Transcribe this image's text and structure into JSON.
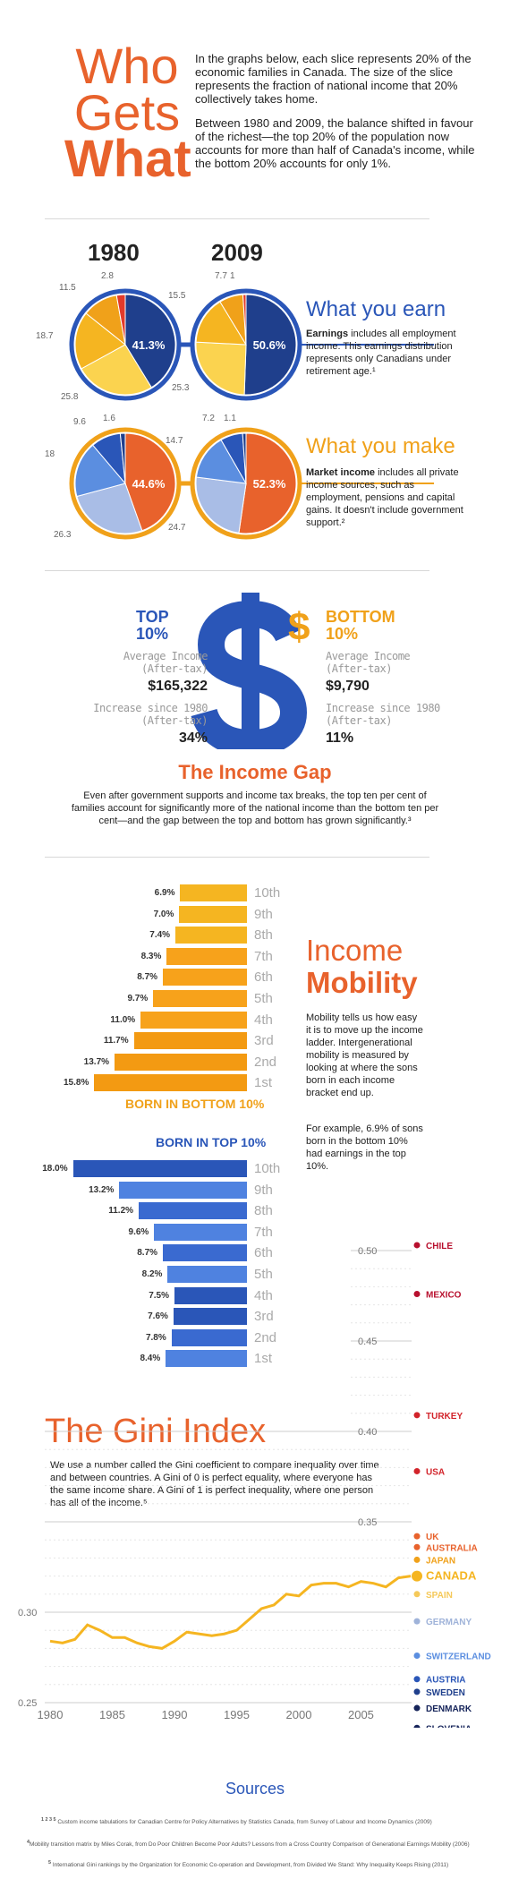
{
  "header": {
    "title_line1": "Who",
    "title_line2": "Gets",
    "title_line3": "What",
    "intro_p1": "In the graphs below, each slice represents 20% of the economic families in Canada. The size of the slice represents the fraction of national income that 20% collectively takes home.",
    "intro_p2": "Between 1980 and 2009, the balance shifted in favour of the richest—the top 20% of the population now accounts for more than half of Canada's income, while the bottom 20% accounts for only 1%."
  },
  "pies": {
    "year_a": "1980",
    "year_b": "2009",
    "earn_title": "What you earn",
    "earn_desc_bold": "Earnings",
    "earn_desc": " includes all employment income. This earnings distribution represents only Canadians under retirement age.¹",
    "make_title": "What you make",
    "make_desc_bold": "Market income",
    "make_desc": " includes all private income sources, such as employment, pensions and capital gains. It doesn't include government support.²"
  },
  "colors": {
    "orange": "#e8622c",
    "navy": "#1f3f8c",
    "blue": "#2a56b8",
    "gold": "#f5b521",
    "yellow": "#fbd34f",
    "red": "#e23a2a"
  },
  "chart_data": [
    {
      "type": "pie",
      "title": "What you earn",
      "series": [
        {
          "name": "1980",
          "values": [
            41.3,
            25.8,
            18.7,
            11.5,
            2.8
          ],
          "labels": [
            "41.3%",
            "25.8",
            "18.7",
            "11.5",
            "2.8"
          ]
        },
        {
          "name": "2009",
          "values": [
            50.6,
            25.3,
            15.5,
            7.7,
            1
          ],
          "labels": [
            "50.6%",
            "25.3",
            "15.5",
            "7.7",
            "1"
          ]
        }
      ]
    },
    {
      "type": "pie",
      "title": "What you make",
      "series": [
        {
          "name": "1980",
          "values": [
            44.6,
            26.3,
            18,
            9.6,
            1.6
          ],
          "labels": [
            "44.6%",
            "26.3",
            "18",
            "9.6",
            "1.6"
          ]
        },
        {
          "name": "2009",
          "values": [
            52.3,
            24.7,
            14.7,
            7.2,
            1.1
          ],
          "labels": [
            "52.3%",
            "24.7",
            "14.7",
            "7.2",
            "1.1"
          ]
        }
      ]
    },
    {
      "type": "bar",
      "title": "BORN IN BOTTOM 10%",
      "categories": [
        "10th",
        "9th",
        "8th",
        "7th",
        "6th",
        "5th",
        "4th",
        "3rd",
        "2nd",
        "1st"
      ],
      "values": [
        6.9,
        7.0,
        7.4,
        8.3,
        8.7,
        9.7,
        11.0,
        11.7,
        13.7,
        15.8
      ],
      "labels": [
        "6.9%",
        "7.0%",
        "7.4%",
        "8.3%",
        "8.7%",
        "9.7%",
        "11.0%",
        "11.7%",
        "13.7%",
        "15.8%"
      ]
    },
    {
      "type": "bar",
      "title": "BORN IN TOP 10%",
      "categories": [
        "10th",
        "9th",
        "8th",
        "7th",
        "6th",
        "5th",
        "4th",
        "3rd",
        "2nd",
        "1st"
      ],
      "values": [
        18.0,
        13.2,
        11.2,
        9.6,
        8.7,
        8.2,
        7.5,
        7.6,
        7.8,
        8.4
      ],
      "labels": [
        "18.0%",
        "13.2%",
        "11.2%",
        "9.6%",
        "8.7%",
        "8.2%",
        "7.5%",
        "7.6%",
        "7.8%",
        "8.4%"
      ]
    },
    {
      "type": "line",
      "title": "The Gini Index",
      "x": [
        1980,
        1981,
        1982,
        1983,
        1984,
        1985,
        1986,
        1987,
        1988,
        1989,
        1990,
        1991,
        1992,
        1993,
        1994,
        1995,
        1996,
        1997,
        1998,
        1999,
        2000,
        2001,
        2002,
        2003,
        2004,
        2005,
        2006,
        2007,
        2008,
        2009
      ],
      "series": [
        {
          "name": "CANADA",
          "values": [
            0.284,
            0.283,
            0.285,
            0.293,
            0.29,
            0.286,
            0.286,
            0.283,
            0.281,
            0.28,
            0.284,
            0.289,
            0.288,
            0.287,
            0.288,
            0.29,
            0.296,
            0.302,
            0.304,
            0.31,
            0.309,
            0.315,
            0.316,
            0.316,
            0.314,
            0.317,
            0.316,
            0.314,
            0.319,
            0.32
          ]
        }
      ],
      "xticks": [
        "1980",
        "1985",
        "1990",
        "1995",
        "2000",
        "2005"
      ],
      "yticks": [
        "0.25",
        "0.30",
        "0.35",
        "0.40",
        "0.45",
        "0.50"
      ],
      "ylim": [
        0.25,
        0.51
      ],
      "xlim": [
        1980,
        2009.5
      ],
      "countries": [
        {
          "name": "CHILE",
          "value": 0.503,
          "color": "#b8102e"
        },
        {
          "name": "MEXICO",
          "value": 0.476,
          "color": "#b8102e"
        },
        {
          "name": "TURKEY",
          "value": 0.409,
          "color": "#d2232a"
        },
        {
          "name": "USA",
          "value": 0.378,
          "color": "#d2232a"
        },
        {
          "name": "UK",
          "value": 0.342,
          "color": "#e8622c"
        },
        {
          "name": "AUSTRALIA",
          "value": 0.336,
          "color": "#e8622c"
        },
        {
          "name": "JAPAN",
          "value": 0.329,
          "color": "#f0a11a"
        },
        {
          "name": "CANADA",
          "value": 0.32,
          "color": "#f5b521"
        },
        {
          "name": "SPAIN",
          "value": 0.31,
          "color": "#f5c95a"
        },
        {
          "name": "GERMANY",
          "value": 0.295,
          "color": "#9fb3d9"
        },
        {
          "name": "SWITZERLAND",
          "value": 0.276,
          "color": "#5b8ee0"
        },
        {
          "name": "AUSTRIA",
          "value": 0.263,
          "color": "#2a56b8"
        },
        {
          "name": "SWEDEN",
          "value": 0.256,
          "color": "#1f3f8c"
        },
        {
          "name": "DENMARK",
          "value": 0.247,
          "color": "#16245a"
        },
        {
          "name": "SLOVENIA",
          "value": 0.236,
          "color": "#16245a"
        }
      ]
    }
  ],
  "dollar": {
    "top_title": "TOP 10%",
    "top_avg_label": "Average Income (After-tax)",
    "top_avg": "$165,322",
    "top_inc_label": "Increase since 1980 (After-tax)",
    "top_inc": "34%",
    "bottom_title": "BOTTOM 10%",
    "bottom_avg_label": "Average Income (After-tax)",
    "bottom_avg": "$9,790",
    "bottom_inc_label": "Increase since 1980 (After-tax)",
    "bottom_inc": "11%",
    "gap_title": "The Income Gap",
    "gap_desc": "Even after government supports and income tax breaks, the top ten per cent of families account for significantly more of the national income than the bottom ten per cent—and the gap between the top and bottom has grown significantly.³"
  },
  "mobility": {
    "title_line1": "Income",
    "title_line2": "Mobility",
    "desc1": "Mobility tells us how easy it is to move up the income ladder. Intergenerational mobility is measured by looking at where the sons born in each income bracket end up.",
    "desc2": "For example, 6.9% of sons born in the bottom 10% had earnings in the top 10%."
  },
  "gini": {
    "title": "The Gini Index",
    "desc": "We use a number called the Gini coefficient to compare inequality over time and between countries. A Gini of 0 is perfect equality, where everyone has the same income share. A Gini of 1 is perfect inequality, where one person has all of the income.⁵"
  },
  "sources": {
    "title": "Sources",
    "s1_num": "1 2 3 5",
    "s1": "Custom income tabulations for Canadian Centre for Policy Alternatives by Statistics Canada, from Survey of Labour and Income Dynamics (2009)",
    "s2_num": "4",
    "s2": "Mobility transition matrix by Miles Corak, from Do Poor Children Become Poor Adults? Lessons from a Cross Country Comparison of Generational Earnings Mobility (2006)",
    "s3_num": "5",
    "s3": "International Gini rankings by the Organization for Economic Co-operation and Development, from Divided We Stand: Why Inequality Keeps Rising (2011)"
  }
}
